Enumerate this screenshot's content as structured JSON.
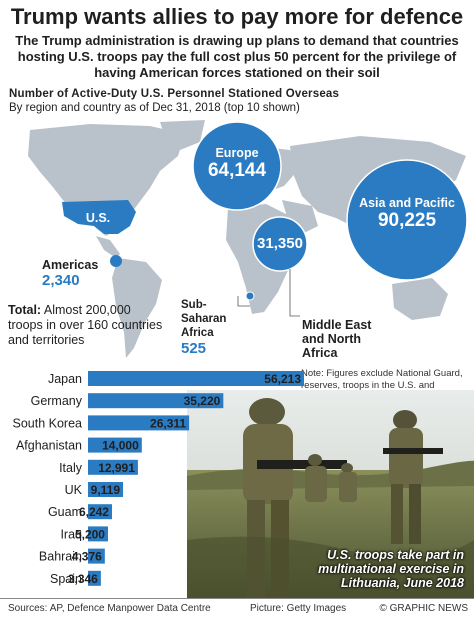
{
  "header": {
    "title": "Trump wants allies to pay more for defence",
    "subtitle": "The Trump administration is drawing up plans to demand that countries hosting U.S. troops pay the full cost plus 50 percent for the privilege of having American forces stationed on their soil"
  },
  "section": {
    "heading": "Number of Active-Duty U.S. Personnel Stationed Overseas",
    "subheading": "By region and country as of Dec 31, 2018 (top 10 shown)"
  },
  "map": {
    "us_label": "U.S.",
    "regions": [
      {
        "name": "Europe",
        "value": "64,144"
      },
      {
        "name": "Asia and Pacific",
        "value": "90,225"
      },
      {
        "name": "Middle East and North Africa",
        "value": "31,350"
      },
      {
        "name": "Americas",
        "value": "2,340"
      },
      {
        "name": "Sub-Saharan Africa",
        "value": "525"
      }
    ],
    "total_bold": "Total:",
    "total_text": "Almost 200,000 troops in over 160 countries and territories",
    "region_colors": {
      "bubble": "#2a7bc2",
      "land": "#b9c2cb",
      "us": "#2a7bc2",
      "ocean": "#ffffff"
    }
  },
  "note": "Note: Figures exclude National Guard, reserves, troops in the U.S. and personnel in unknown locations",
  "photo": {
    "caption": "U.S. troops take part in multinational exercise in Lithuania, June 2018"
  },
  "chart_data": {
    "type": "bar",
    "orientation": "horizontal",
    "categories": [
      "Japan",
      "Germany",
      "South Korea",
      "Afghanistan",
      "Italy",
      "UK",
      "Guam",
      "Iraq",
      "Bahrain",
      "Spain"
    ],
    "values": [
      56213,
      35220,
      26311,
      14000,
      12991,
      9119,
      6242,
      5200,
      4376,
      3346
    ],
    "labels": [
      "56,213",
      "35,220",
      "26,311",
      "14,000",
      "12,991",
      "9,119",
      "6,242",
      "5,200",
      "4,376",
      "3,346"
    ],
    "bar_color": "#2a7bc2"
  },
  "footer": {
    "sources": "Sources: AP, Defence Manpower Data Centre",
    "picture": "Picture: Getty Images",
    "credit": "© GRAPHIC NEWS"
  }
}
